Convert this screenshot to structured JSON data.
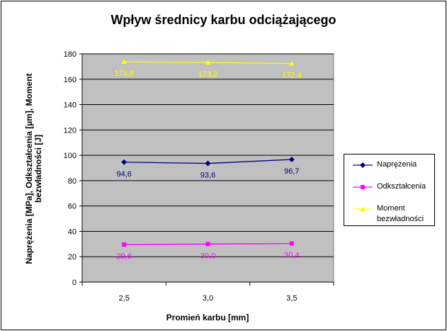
{
  "chart_data": {
    "type": "line",
    "title": "Wpływ średnicy karbu odciążającego",
    "xlabel": "Promień karbu [mm]",
    "ylabel": "Naprężenia [MPa], Odkształcenia [µm], Moment bezwładności [J]",
    "categories": [
      "2,5",
      "3,0",
      "3,5"
    ],
    "ylim": [
      0,
      180
    ],
    "yticks": [
      0,
      20,
      40,
      60,
      80,
      100,
      120,
      140,
      160,
      180
    ],
    "grid": true,
    "legend_position": "right",
    "plot_background": "#c0c0c0",
    "series": [
      {
        "name": "Naprężenia",
        "values": [
          94.6,
          93.6,
          96.7
        ],
        "labels": [
          "94,6",
          "93,6",
          "96,7"
        ],
        "color": "#000080",
        "marker": "diamond"
      },
      {
        "name": "Odkształcenia",
        "values": [
          29.6,
          30.0,
          30.4
        ],
        "labels": [
          "29,6",
          "30,0",
          "30,4"
        ],
        "color": "#ff00ff",
        "marker": "square"
      },
      {
        "name": "Moment bezwładności",
        "values": [
          173.8,
          173.2,
          172.4
        ],
        "labels": [
          "173,8",
          "173,2",
          "172,4"
        ],
        "color": "#ffff00",
        "marker": "triangle"
      }
    ]
  }
}
